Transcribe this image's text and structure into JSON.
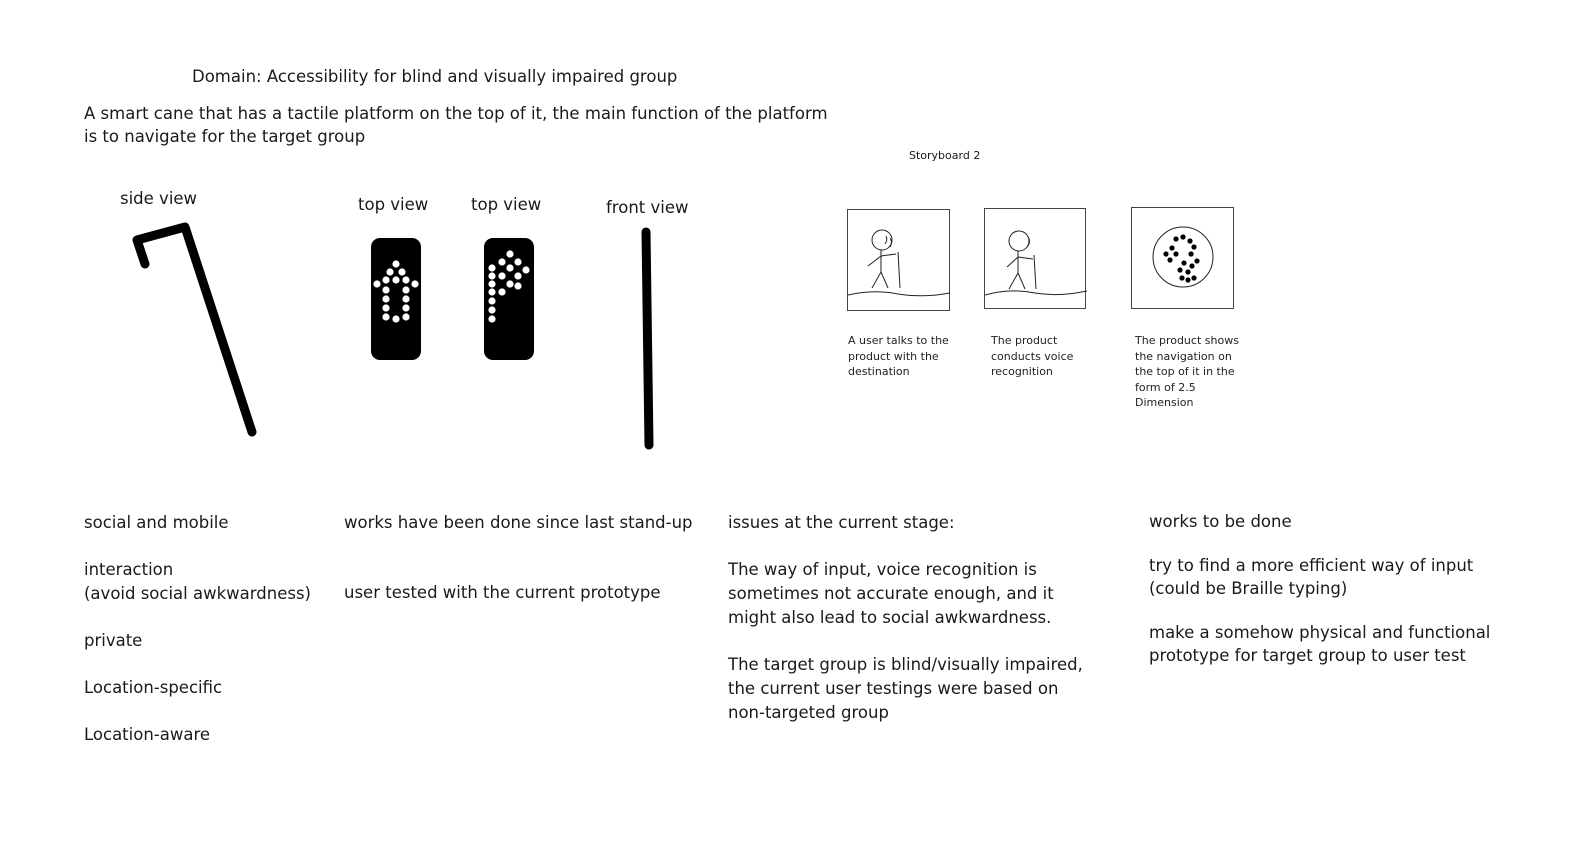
{
  "header": {
    "domain": "Domain: Accessibility for blind and visually impaired group",
    "description_line1": "A smart cane that has a tactile platform on the top of it, the main function of the platform",
    "description_line2": "is to navigate for the target group"
  },
  "views": {
    "side": "side view",
    "top1": "top view",
    "top2": "top view",
    "front": "front view"
  },
  "storyboard": {
    "title": "Storyboard 2",
    "frames": [
      {
        "caption": [
          "A user talks to the",
          "product with the",
          "destination"
        ]
      },
      {
        "caption": [
          "The product",
          "conducts voice",
          "recognition"
        ]
      },
      {
        "caption": [
          "The product shows",
          "the navigation on",
          "the top of it in the",
          "form of 2.5",
          "Dimension"
        ]
      }
    ]
  },
  "notes": {
    "col1": [
      "social and mobile",
      "interaction",
      "(avoid social awkwardness)",
      "private",
      "Location-specific",
      "Location-aware"
    ],
    "col2": [
      "works have been done since last stand-up",
      "user tested with the current prototype"
    ],
    "col3": {
      "heading": "issues at the current stage:",
      "p1": [
        "The way of input, voice recognition is",
        "sometimes not accurate enough, and it",
        "might also lead to social awkwardness."
      ],
      "p2": [
        "The target group is blind/visually impaired,",
        "the current user testings were based on",
        "non-targeted group"
      ]
    },
    "col4": {
      "heading": "works to be done",
      "p1": [
        "try to find a more efficient way of input",
        "(could be Braille typing)"
      ],
      "p2": [
        "make a somehow physical and functional",
        "prototype for target group to user test"
      ]
    }
  }
}
